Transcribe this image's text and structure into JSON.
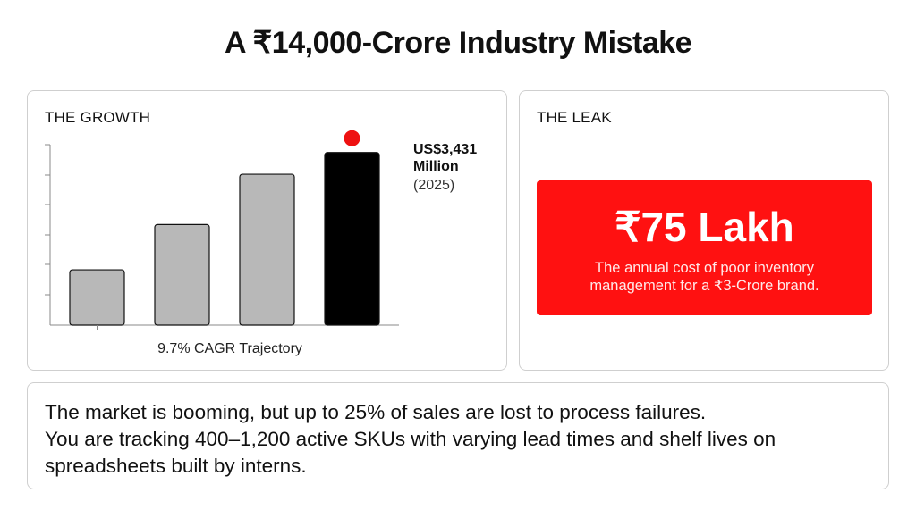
{
  "page": {
    "title": "A ₹14,000-Crore Industry Mistake"
  },
  "growth": {
    "label": "THE GROWTH"
  },
  "chart_data": {
    "type": "bar",
    "categories": [
      "",
      "",
      "",
      ""
    ],
    "values": [
      1100,
      2000,
      3000,
      3431
    ],
    "highlight_index": 3,
    "annotation": {
      "value_line1": "US$3,431",
      "value_line2": "Million",
      "year": "(2025)"
    },
    "xlabel": "9.7% CAGR Trajectory",
    "ylim": [
      0,
      3800
    ],
    "colors": {
      "bar": "#b8b8b8",
      "highlight_bar": "#000000",
      "marker": "#ee1111",
      "axis": "#888888"
    }
  },
  "leak": {
    "label": "THE LEAK",
    "value": "₹75 Lakh",
    "caption": "The annual cost of poor inventory management for a ₹3-Crore brand."
  },
  "summary": {
    "line1": "The market is booming, but up to 25% of sales are lost to process failures.",
    "line2": "You are tracking 400–1,200 active SKUs with varying lead times and shelf lives on spreadsheets built by interns."
  }
}
